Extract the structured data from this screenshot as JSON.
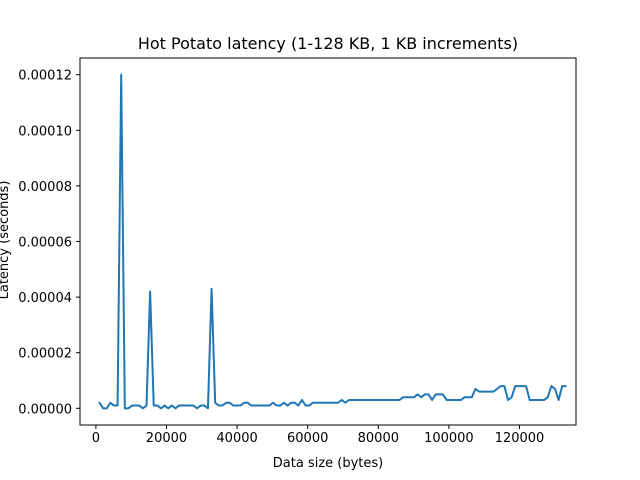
{
  "chart_data": {
    "type": "line",
    "title": "Hot Potato latency (1-128 KB, 1 KB increments)",
    "xlabel": "Data size (bytes)",
    "ylabel": "Latency (seconds)",
    "xlim": [
      -4500,
      136000
    ],
    "ylim": [
      -6e-06,
      0.000126
    ],
    "xticks": [
      0,
      20000,
      40000,
      60000,
      80000,
      100000,
      120000
    ],
    "xtick_labels": [
      "0",
      "20000",
      "40000",
      "60000",
      "80000",
      "100000",
      "120000"
    ],
    "yticks": [
      0,
      2e-05,
      4e-05,
      6e-05,
      8e-05,
      0.0001,
      0.00012
    ],
    "ytick_labels": [
      "0.00000",
      "0.00002",
      "0.00004",
      "0.00006",
      "0.00008",
      "0.00010",
      "0.00012"
    ],
    "grid": false,
    "series": [
      {
        "color": "#1f77b4",
        "points": [
          [
            1024,
            2e-06
          ],
          [
            2048,
            0.0
          ],
          [
            3072,
            0.0
          ],
          [
            4096,
            2e-06
          ],
          [
            5120,
            1e-06
          ],
          [
            6144,
            1e-06
          ],
          [
            7168,
            0.00012
          ],
          [
            8192,
            0.0
          ],
          [
            9216,
            0.0
          ],
          [
            10240,
            1e-06
          ],
          [
            11264,
            1e-06
          ],
          [
            12288,
            1e-06
          ],
          [
            13312,
            0.0
          ],
          [
            14336,
            1e-06
          ],
          [
            15360,
            4.2e-05
          ],
          [
            16384,
            1e-06
          ],
          [
            17408,
            1e-06
          ],
          [
            18432,
            0.0
          ],
          [
            19456,
            1e-06
          ],
          [
            20480,
            0.0
          ],
          [
            21504,
            1e-06
          ],
          [
            22528,
            0.0
          ],
          [
            23552,
            1e-06
          ],
          [
            24576,
            1e-06
          ],
          [
            25600,
            1e-06
          ],
          [
            26624,
            1e-06
          ],
          [
            27648,
            1e-06
          ],
          [
            28672,
            0.0
          ],
          [
            29696,
            1e-06
          ],
          [
            30720,
            1e-06
          ],
          [
            31744,
            0.0
          ],
          [
            32768,
            4.3e-05
          ],
          [
            33792,
            2e-06
          ],
          [
            34816,
            1e-06
          ],
          [
            35840,
            1e-06
          ],
          [
            36864,
            2e-06
          ],
          [
            37888,
            2e-06
          ],
          [
            38912,
            1e-06
          ],
          [
            39936,
            1e-06
          ],
          [
            40960,
            1e-06
          ],
          [
            41984,
            2e-06
          ],
          [
            43008,
            2e-06
          ],
          [
            44032,
            1e-06
          ],
          [
            45056,
            1e-06
          ],
          [
            46080,
            1e-06
          ],
          [
            47104,
            1e-06
          ],
          [
            48128,
            1e-06
          ],
          [
            49152,
            1e-06
          ],
          [
            50176,
            2e-06
          ],
          [
            51200,
            1e-06
          ],
          [
            52224,
            1e-06
          ],
          [
            53248,
            2e-06
          ],
          [
            54272,
            1e-06
          ],
          [
            55296,
            2e-06
          ],
          [
            56320,
            2e-06
          ],
          [
            57344,
            1e-06
          ],
          [
            58368,
            3e-06
          ],
          [
            59392,
            1e-06
          ],
          [
            60416,
            1e-06
          ],
          [
            61440,
            2e-06
          ],
          [
            62464,
            2e-06
          ],
          [
            63488,
            2e-06
          ],
          [
            64512,
            2e-06
          ],
          [
            65536,
            2e-06
          ],
          [
            66560,
            2e-06
          ],
          [
            67584,
            2e-06
          ],
          [
            68608,
            2e-06
          ],
          [
            69632,
            3e-06
          ],
          [
            70656,
            2e-06
          ],
          [
            71680,
            3e-06
          ],
          [
            72704,
            3e-06
          ],
          [
            73728,
            3e-06
          ],
          [
            74752,
            3e-06
          ],
          [
            75776,
            3e-06
          ],
          [
            76800,
            3e-06
          ],
          [
            77824,
            3e-06
          ],
          [
            78848,
            3e-06
          ],
          [
            79872,
            3e-06
          ],
          [
            80896,
            3e-06
          ],
          [
            81920,
            3e-06
          ],
          [
            82944,
            3e-06
          ],
          [
            83968,
            3e-06
          ],
          [
            84992,
            3e-06
          ],
          [
            86016,
            3e-06
          ],
          [
            87040,
            4e-06
          ],
          [
            88064,
            4e-06
          ],
          [
            89088,
            4e-06
          ],
          [
            90112,
            4e-06
          ],
          [
            91136,
            5e-06
          ],
          [
            92160,
            4e-06
          ],
          [
            93184,
            5e-06
          ],
          [
            94208,
            5e-06
          ],
          [
            95232,
            3e-06
          ],
          [
            96256,
            5e-06
          ],
          [
            97280,
            5e-06
          ],
          [
            98304,
            5e-06
          ],
          [
            99328,
            3e-06
          ],
          [
            100352,
            3e-06
          ],
          [
            101376,
            3e-06
          ],
          [
            102400,
            3e-06
          ],
          [
            103424,
            3e-06
          ],
          [
            104448,
            4e-06
          ],
          [
            105472,
            4e-06
          ],
          [
            106496,
            4e-06
          ],
          [
            107520,
            7e-06
          ],
          [
            108544,
            6e-06
          ],
          [
            109568,
            6e-06
          ],
          [
            110592,
            6e-06
          ],
          [
            111616,
            6e-06
          ],
          [
            112640,
            6e-06
          ],
          [
            113664,
            7e-06
          ],
          [
            114688,
            8e-06
          ],
          [
            115712,
            8e-06
          ],
          [
            116736,
            3e-06
          ],
          [
            117760,
            4e-06
          ],
          [
            118784,
            8e-06
          ],
          [
            119808,
            8e-06
          ],
          [
            120832,
            8e-06
          ],
          [
            121856,
            8e-06
          ],
          [
            122880,
            3e-06
          ],
          [
            123904,
            3e-06
          ],
          [
            124928,
            3e-06
          ],
          [
            125952,
            3e-06
          ],
          [
            126976,
            3e-06
          ],
          [
            128000,
            4e-06
          ],
          [
            129024,
            8e-06
          ],
          [
            130048,
            7e-06
          ],
          [
            131072,
            3e-06
          ],
          [
            132096,
            8e-06
          ],
          [
            133120,
            8e-06
          ]
        ]
      }
    ]
  }
}
